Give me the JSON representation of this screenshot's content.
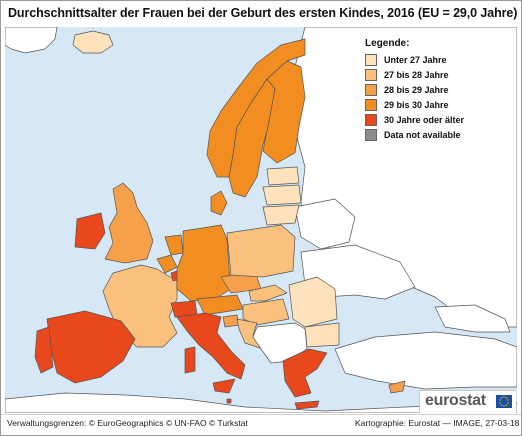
{
  "title": "Durchschnittsalter der Frauen bei der Geburt des ersten Kindes, 2016 (EU = 29,0 Jahre)",
  "legend": {
    "title": "Legende:",
    "items": [
      {
        "label": "Unter 27 Jahre",
        "color": "#fde2bb"
      },
      {
        "label": "27 bis 28 Jahre",
        "color": "#fac07d"
      },
      {
        "label": "28 bis 29 Jahre",
        "color": "#f6a049"
      },
      {
        "label": "29 bis 30 Jahre",
        "color": "#f18d21"
      },
      {
        "label": "30 Jahre oder älter",
        "color": "#e8481c"
      },
      {
        "label": "Data not available",
        "color": "#8c8c8c"
      }
    ]
  },
  "colors": {
    "sea": "#d6e7f5",
    "non_eu": "#ffffff",
    "border": "#555555"
  },
  "footer": {
    "left": "Verwaltungsgrenzen: © EuroGeographics © UN-FAO © Turkstat",
    "right": "Kartographie: Eurostat — IMAGE, 27-03-18"
  },
  "logo": {
    "text": "eurostat",
    "icon": "eu-flag-icon"
  }
}
